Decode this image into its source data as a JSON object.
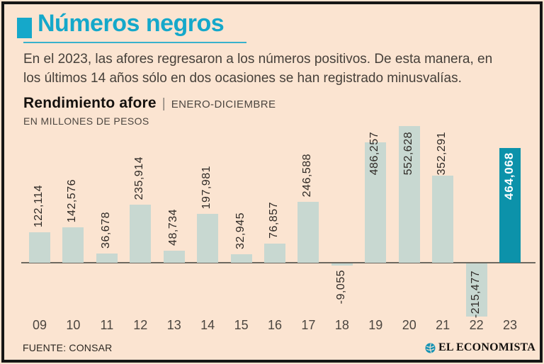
{
  "header": {
    "title": "Números negros",
    "intro_lines": [
      "En el 2023, las afores regresaron a los números positivos. De esta manera, en",
      "los últimos 14 años sólo en dos ocasiones se han registrado minusvalías."
    ]
  },
  "section": {
    "title": "Rendimiento afore",
    "separator": "|",
    "period": "ENERO-DICIEMBRE",
    "units": "EN MILLONES DE PESOS"
  },
  "chart_data": {
    "type": "bar",
    "title": "Rendimiento afore",
    "subtitle": "ENERO-DICIEMBRE",
    "units_label": "EN MILLONES DE PESOS",
    "categories": [
      "09",
      "10",
      "11",
      "12",
      "13",
      "14",
      "15",
      "16",
      "17",
      "18",
      "19",
      "20",
      "21",
      "22",
      "23"
    ],
    "values": [
      122114,
      142576,
      36678,
      235914,
      48734,
      197981,
      32945,
      76857,
      246588,
      -9055,
      486257,
      552628,
      352291,
      -215477,
      464068
    ],
    "labels": [
      "122,114",
      "142,576",
      "36,678",
      "235,914",
      "48,734",
      "197,981",
      "32,945",
      "76,857",
      "246,588",
      "-9,055",
      "486,257",
      "552,628",
      "352,291",
      "-215,477",
      "464,068"
    ],
    "highlight_category": "23",
    "ylim": [
      -250000,
      600000
    ],
    "grid": false,
    "legend": null
  },
  "footer": {
    "source": "FUENTE: CONSAR",
    "brand": "EL ECONOMISTA"
  },
  "colors": {
    "background": "#fbe4d1",
    "accent": "#15a8ca",
    "bar": "#c8d8d1",
    "bar_highlight": "#0c92aa",
    "axis": "#6e6960",
    "label_dark": "#2f2a26"
  }
}
